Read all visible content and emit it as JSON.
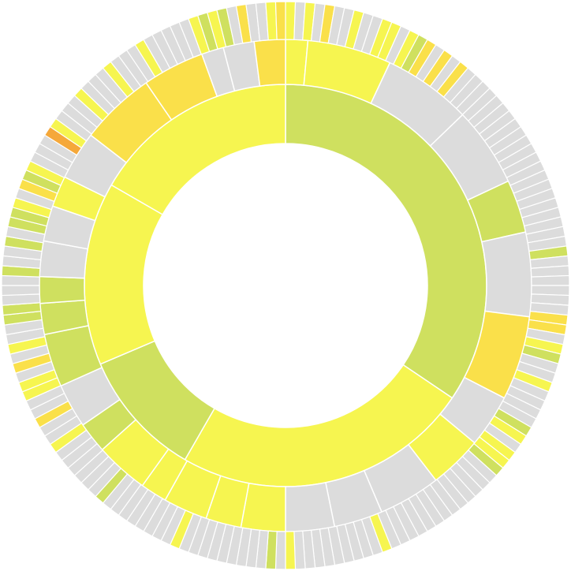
{
  "chart_data": {
    "type": "sunburst",
    "title": "",
    "legend": "none",
    "start_angle_deg": 0,
    "direction": "clockwise",
    "colors": {
      "grey": "#dcdcdc",
      "yellow": "#f6f550",
      "green": "#cfe05f",
      "gold": "#fae04a",
      "orange": "#f5a83a",
      "background": "#ffffff",
      "separator": "#ffffff"
    },
    "rings": [
      {
        "level": 1,
        "segments": [
          {
            "value": 124,
            "color": "green"
          },
          {
            "value": 86,
            "color": "yellow"
          },
          {
            "value": 37,
            "color": "green"
          },
          {
            "value": 53,
            "color": "yellow"
          },
          {
            "value": 60,
            "color": "yellow"
          }
        ]
      },
      {
        "level": 2,
        "segments": [
          {
            "value": 5,
            "color": "yellow"
          },
          {
            "value": 19,
            "color": "yellow"
          },
          {
            "value": 20,
            "color": "grey"
          },
          {
            "value": 18,
            "color": "grey"
          },
          {
            "value": 12,
            "color": "green"
          },
          {
            "value": 19,
            "color": "grey"
          },
          {
            "value": 19,
            "color": "gold"
          },
          {
            "value": 12,
            "color": "grey"
          },
          {
            "value": 12,
            "color": "yellow"
          },
          {
            "value": 14,
            "color": "grey"
          },
          {
            "value": 11,
            "color": "grey"
          },
          {
            "value": 11,
            "color": "grey"
          },
          {
            "value": 10,
            "color": "yellow"
          },
          {
            "value": 8,
            "color": "yellow"
          },
          {
            "value": 10,
            "color": "yellow"
          },
          {
            "value": 6,
            "color": "yellow"
          },
          {
            "value": 12,
            "color": "yellow"
          },
          {
            "value": 7,
            "color": "green"
          },
          {
            "value": 10,
            "color": "grey"
          },
          {
            "value": 12,
            "color": "green"
          },
          {
            "value": 7,
            "color": "green"
          },
          {
            "value": 6,
            "color": "green"
          },
          {
            "value": 8,
            "color": "grey"
          },
          {
            "value": 8,
            "color": "grey"
          },
          {
            "value": 7,
            "color": "yellow"
          },
          {
            "value": 11,
            "color": "grey"
          },
          {
            "value": 17,
            "color": "gold"
          },
          {
            "value": 14,
            "color": "gold"
          },
          {
            "value": 5,
            "color": "grey"
          },
          {
            "value": 7,
            "color": "grey"
          },
          {
            "value": 7,
            "color": "gold"
          }
        ]
      }
    ],
    "outer_ring": {
      "ticks": 180,
      "highlight_colors": [
        "yellow",
        "green",
        "gold",
        "orange"
      ]
    }
  }
}
